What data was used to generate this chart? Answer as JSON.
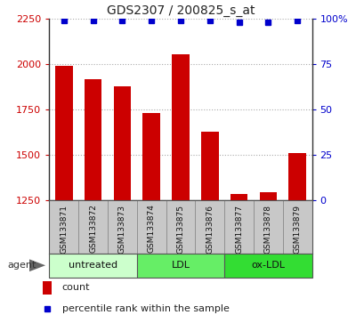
{
  "title": "GDS2307 / 200825_s_at",
  "samples": [
    "GSM133871",
    "GSM133872",
    "GSM133873",
    "GSM133874",
    "GSM133875",
    "GSM133876",
    "GSM133877",
    "GSM133878",
    "GSM133879"
  ],
  "counts": [
    1990,
    1915,
    1880,
    1730,
    2055,
    1625,
    1285,
    1295,
    1510
  ],
  "percentiles": [
    99,
    99,
    99,
    99,
    99,
    99,
    98,
    98,
    99
  ],
  "ylim_left": [
    1250,
    2250
  ],
  "ylim_right": [
    0,
    100
  ],
  "yticks_left": [
    1250,
    1500,
    1750,
    2000,
    2250
  ],
  "yticks_right": [
    0,
    25,
    50,
    75,
    100
  ],
  "bar_color": "#cc0000",
  "dot_color": "#0000cc",
  "groups": [
    {
      "label": "untreated",
      "start": 0,
      "end": 3,
      "color": "#ccffcc"
    },
    {
      "label": "LDL",
      "start": 3,
      "end": 6,
      "color": "#66ee66"
    },
    {
      "label": "ox-LDL",
      "start": 6,
      "end": 9,
      "color": "#33dd33"
    }
  ],
  "group_label": "agent",
  "legend_count_label": "count",
  "legend_pct_label": "percentile rank within the sample",
  "background_color": "#ffffff",
  "label_area_color": "#c8c8c8",
  "grid_color": "#aaaaaa"
}
